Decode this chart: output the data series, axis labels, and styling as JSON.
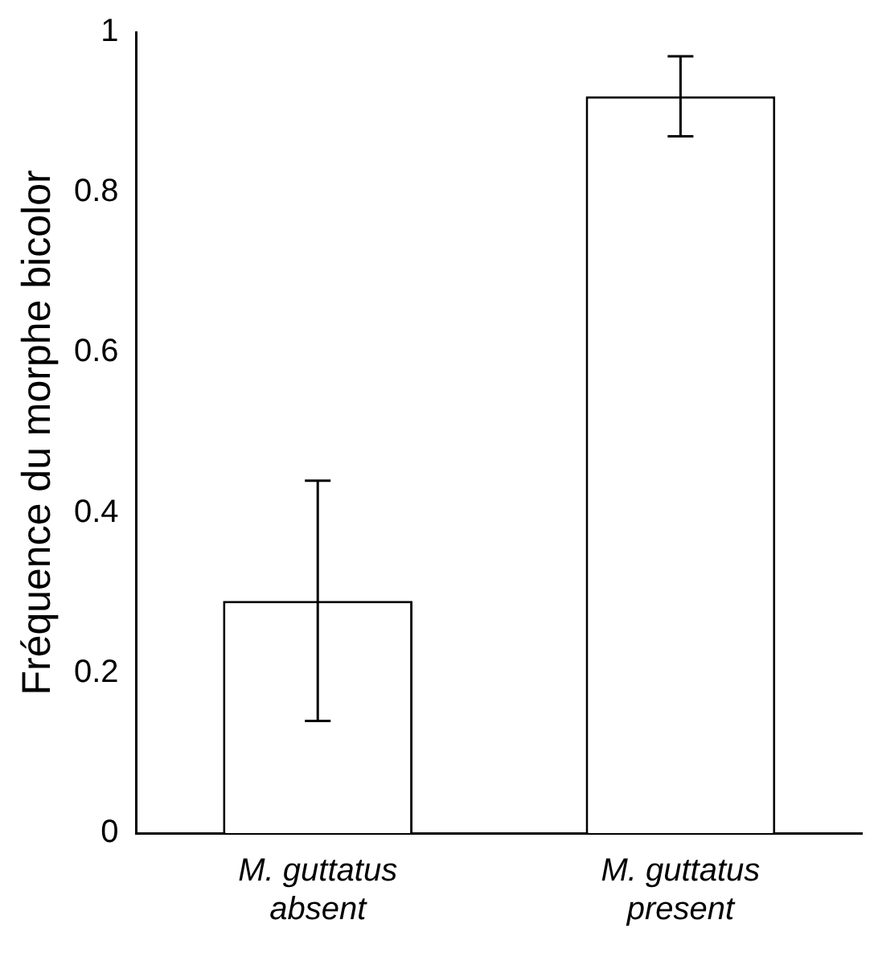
{
  "chart_data": {
    "type": "bar",
    "ylabel": "Fréquence du morphe bicolor",
    "categories": [
      "M. guttatus\nabsent",
      "M. guttatus\npresent"
    ],
    "values": [
      0.29,
      0.92
    ],
    "color": "#ffffff",
    "errors": [
      [
        0.14,
        0.44
      ],
      [
        0.87,
        0.97
      ]
    ],
    "ylim": [
      0,
      1
    ],
    "yticks": [
      0,
      0.2,
      0.4,
      0.6,
      0.8,
      {
        "value": 1,
        "label": "1"
      }
    ],
    "grid": false,
    "legend": false
  }
}
